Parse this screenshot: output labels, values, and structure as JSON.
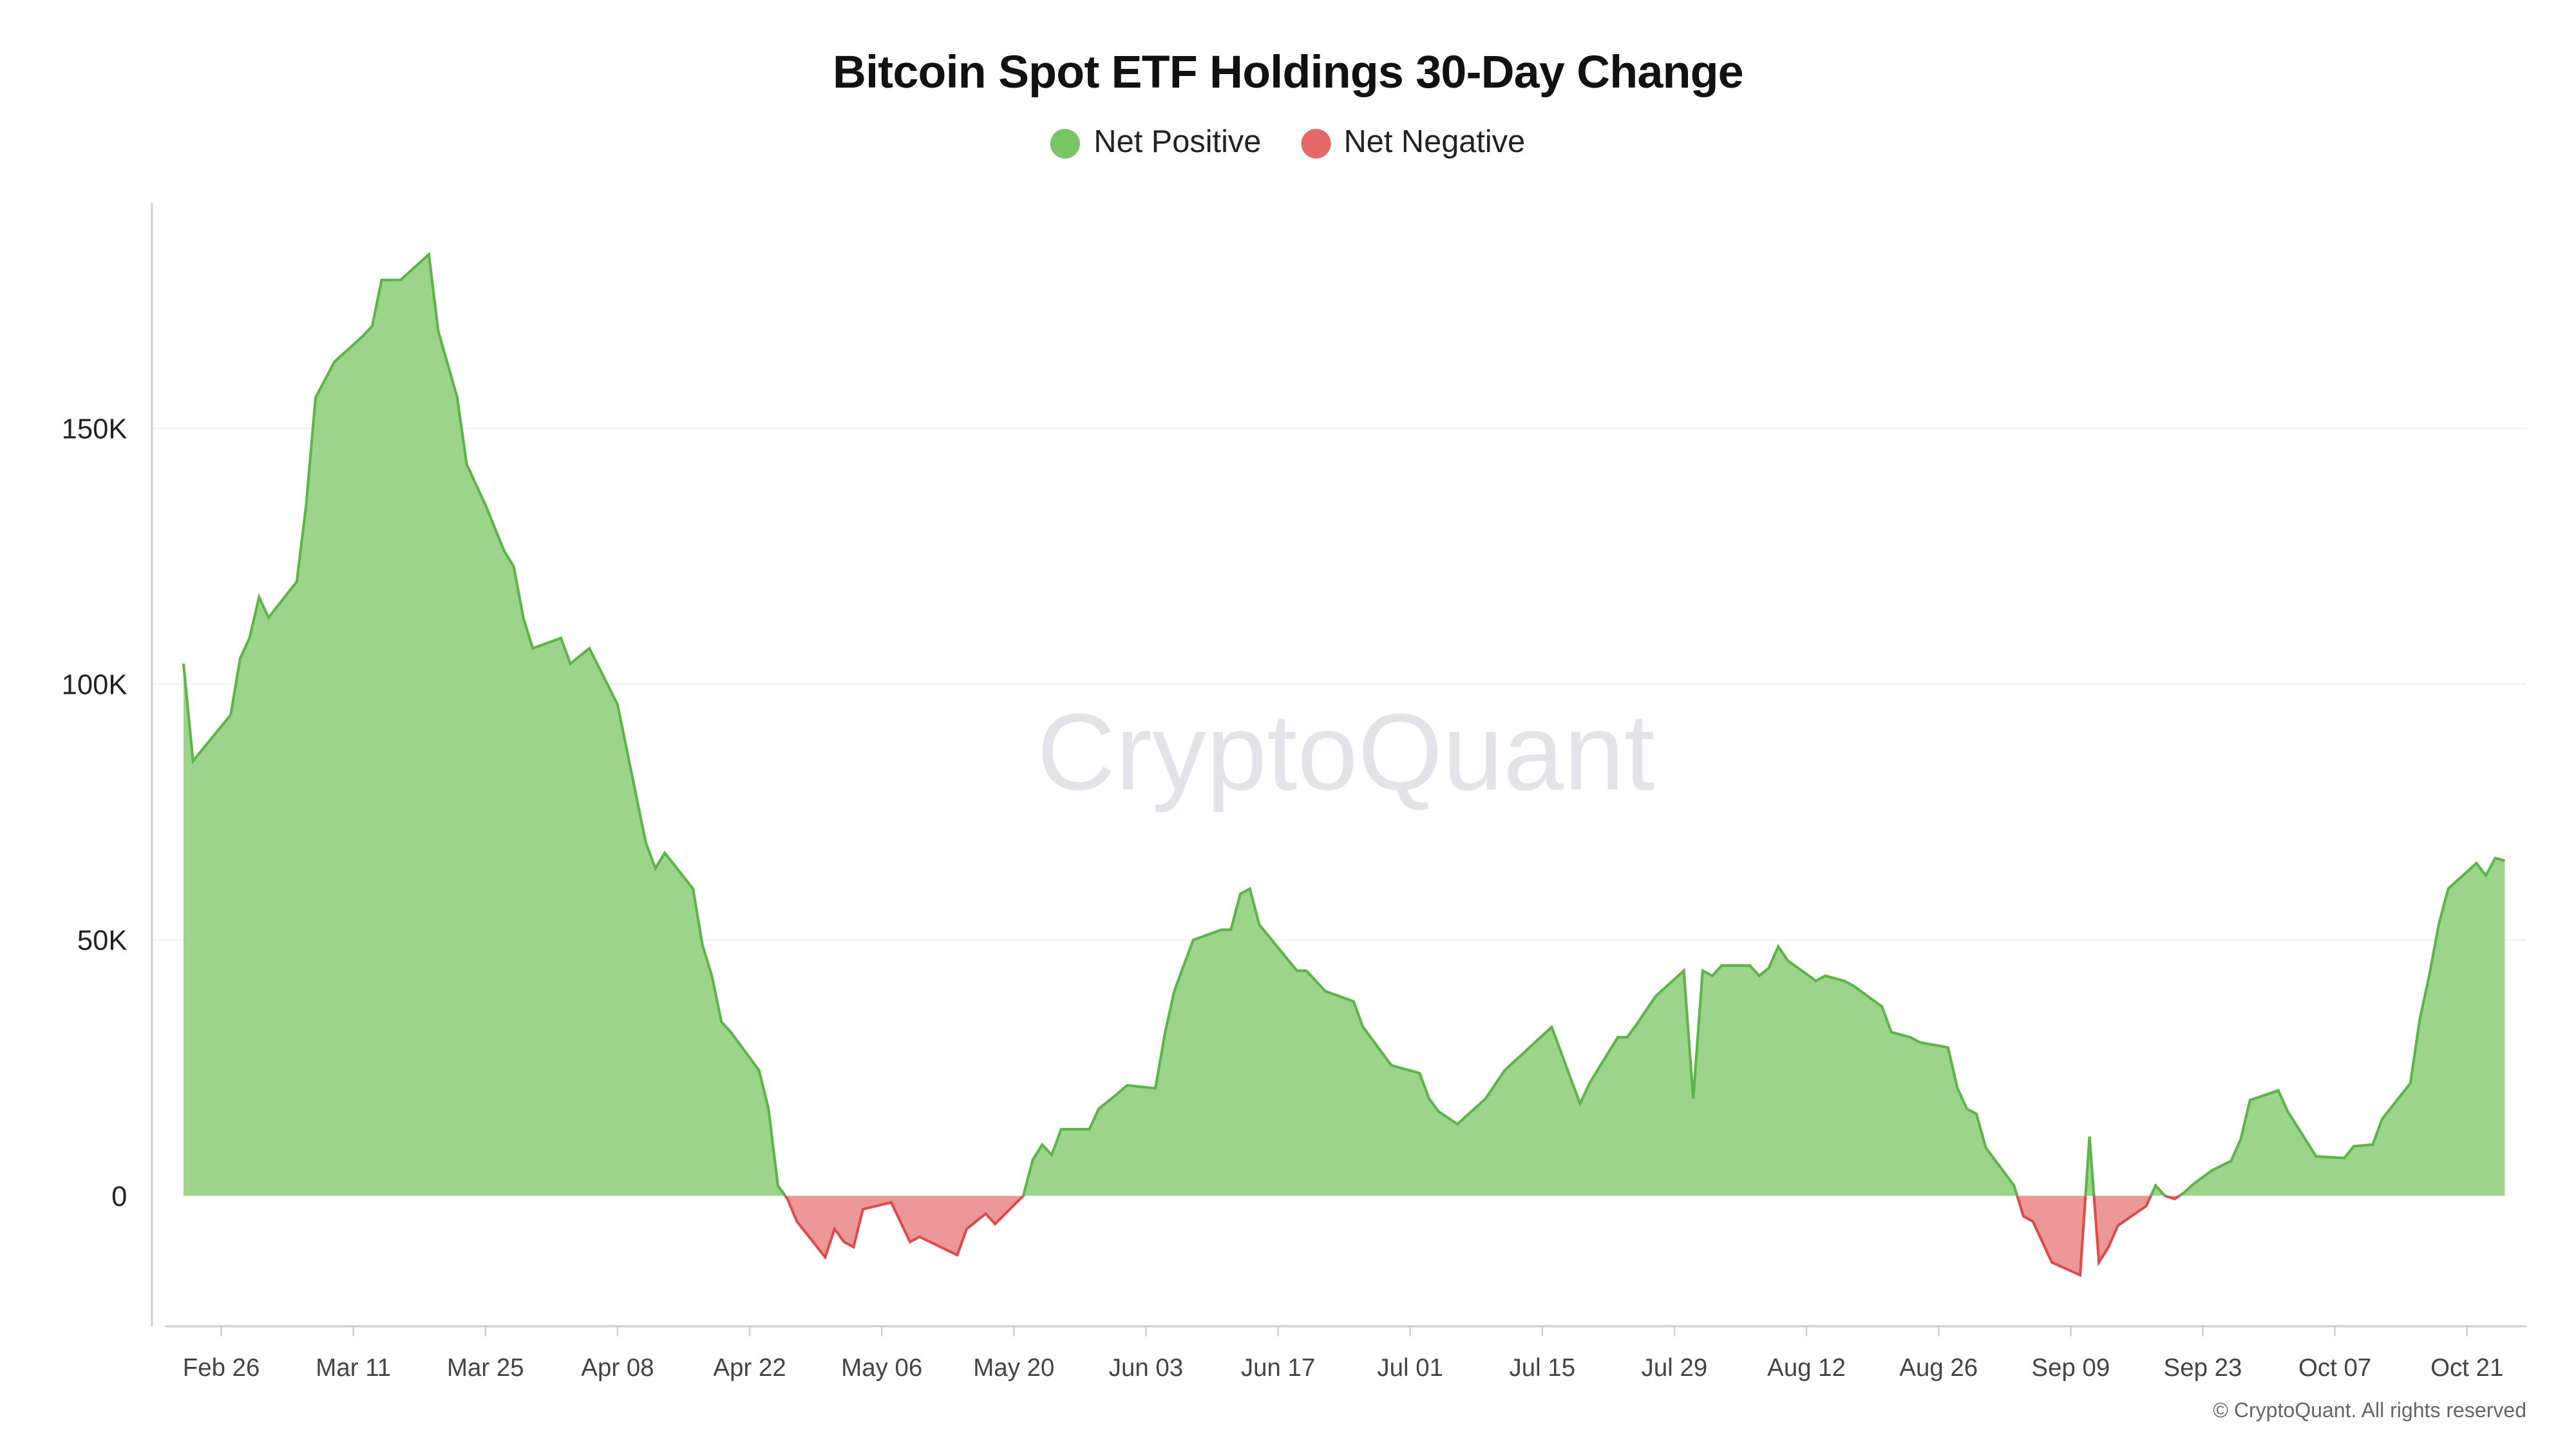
{
  "chart_data": {
    "type": "area",
    "title": "Bitcoin Spot ETF Holdings 30-Day Change",
    "legend": {
      "placement": "top-center",
      "items": [
        {
          "label": "Net Positive",
          "color": "#77c565"
        },
        {
          "label": "Net Negative",
          "color": "#e56868"
        }
      ]
    },
    "colors": {
      "positive_fill": "#9dd48c",
      "positive_line": "#5db54a",
      "negative_fill": "#ec9898",
      "negative_line": "#dc4c4c"
    },
    "watermark": "CryptoQuant",
    "footer": "© CryptoQuant. All rights reserved",
    "xlabel": "",
    "ylabel": "",
    "x_ticks": [
      "Feb 26",
      "Mar 11",
      "Mar 25",
      "Apr 08",
      "Apr 22",
      "May 06",
      "May 20",
      "Jun 03",
      "Jun 17",
      "Jul 01",
      "Jul 15",
      "Jul 29",
      "Aug 12",
      "Aug 26",
      "Sep 09",
      "Sep 23",
      "Oct 07",
      "Oct 21"
    ],
    "y_ticks": [
      {
        "value": 0,
        "label": "0"
      },
      {
        "value": 50000,
        "label": "50K"
      },
      {
        "value": 100000,
        "label": "100K"
      },
      {
        "value": 150000,
        "label": "150K"
      }
    ],
    "ylim": [
      -25500,
      194000
    ],
    "xlim": [
      "Feb 20",
      "Oct 27"
    ],
    "grid": true,
    "x": [
      "Feb 22",
      "Feb 23",
      "Feb 27",
      "Feb 28",
      "Feb 29",
      "Mar 01",
      "Mar 02",
      "Mar 05",
      "Mar 06",
      "Mar 07",
      "Mar 09",
      "Mar 12",
      "Mar 13",
      "Mar 14",
      "Mar 15",
      "Mar 16",
      "Mar 19",
      "Mar 20",
      "Mar 22",
      "Mar 23",
      "Mar 25",
      "Mar 27",
      "Mar 28",
      "Mar 29",
      "Mar 30",
      "Apr 02",
      "Apr 03",
      "Apr 05",
      "Apr 08",
      "Apr 11",
      "Apr 12",
      "Apr 13",
      "Apr 16",
      "Apr 17",
      "Apr 18",
      "Apr 19",
      "Apr 20",
      "Apr 23",
      "Apr 24",
      "Apr 25",
      "Apr 26",
      "Apr 27",
      "Apr 30",
      "May 01",
      "May 02",
      "May 03",
      "May 04",
      "May 07",
      "May 09",
      "May 10",
      "May 14",
      "May 15",
      "May 17",
      "May 18",
      "May 21",
      "May 22",
      "May 23",
      "May 24",
      "May 25",
      "May 28",
      "May 29",
      "May 31",
      "Jun 01",
      "Jun 04",
      "Jun 05",
      "Jun 06",
      "Jun 08",
      "Jun 11",
      "Jun 12",
      "Jun 13",
      "Jun 14",
      "Jun 15",
      "Jun 19",
      "Jun 20",
      "Jun 22",
      "Jun 25",
      "Jun 26",
      "Jun 28",
      "Jun 29",
      "Jul 02",
      "Jul 03",
      "Jul 04",
      "Jul 06",
      "Jul 09",
      "Jul 11",
      "Jul 16",
      "Jul 18",
      "Jul 19",
      "Jul 20",
      "Jul 23",
      "Jul 24",
      "Jul 25",
      "Jul 27",
      "Jul 30",
      "Jul 31",
      "Aug 01",
      "Aug 02",
      "Aug 03",
      "Aug 06",
      "Aug 07",
      "Aug 08",
      "Aug 09",
      "Aug 10",
      "Aug 13",
      "Aug 14",
      "Aug 16",
      "Aug 17",
      "Aug 20",
      "Aug 21",
      "Aug 23",
      "Aug 24",
      "Aug 27",
      "Aug 28",
      "Aug 29",
      "Aug 30",
      "Aug 31",
      "Sep 03",
      "Sep 04",
      "Sep 05",
      "Sep 07",
      "Sep 10",
      "Sep 11",
      "Sep 12",
      "Sep 13",
      "Sep 14",
      "Sep 17",
      "Sep 18",
      "Sep 19",
      "Sep 20",
      "Sep 21",
      "Sep 22",
      "Sep 24",
      "Sep 26",
      "Sep 27",
      "Sep 28",
      "Oct 01",
      "Oct 02",
      "Oct 05",
      "Oct 08",
      "Oct 09",
      "Oct 11",
      "Oct 12",
      "Oct 15",
      "Oct 16",
      "Oct 17",
      "Oct 18",
      "Oct 19",
      "Oct 22",
      "Oct 23",
      "Oct 24",
      "Oct 25"
    ],
    "values": [
      104000,
      85000,
      94000,
      105000,
      109000,
      117000,
      113000,
      120000,
      135000,
      156000,
      163000,
      168000,
      170000,
      179000,
      179000,
      179000,
      184000,
      169000,
      156000,
      143000,
      135000,
      126000,
      123000,
      113000,
      107000,
      109000,
      104000,
      107000,
      96000,
      69000,
      64000,
      67000,
      60000,
      49000,
      43000,
      34000,
      32000,
      24500,
      17000,
      2000,
      -600,
      -5000,
      -12000,
      -6500,
      -9000,
      -10000,
      -2600,
      -1300,
      -9000,
      -8000,
      -11600,
      -6500,
      -3500,
      -5500,
      0,
      7000,
      10000,
      8000,
      13000,
      13000,
      17000,
      20000,
      21600,
      21000,
      31600,
      40000,
      50000,
      52000,
      52000,
      59000,
      60000,
      53000,
      44000,
      44000,
      40000,
      38000,
      33000,
      28000,
      25500,
      24000,
      19000,
      16500,
      14000,
      19000,
      24500,
      33000,
      23000,
      18000,
      22000,
      31000,
      31000,
      33500,
      39000,
      44000,
      19000,
      44000,
      43000,
      45000,
      45000,
      43000,
      44500,
      48700,
      46000,
      42000,
      43000,
      42000,
      41000,
      37000,
      32000,
      31000,
      30000,
      29000,
      21000,
      17000,
      16000,
      9400,
      2000,
      -4000,
      -5000,
      -13000,
      -15500,
      11600,
      -13000,
      -10000,
      -5800,
      -2000,
      2000,
      0,
      -600,
      600,
      2300,
      5000,
      6800,
      11000,
      18700,
      20600,
      16500,
      7700,
      7400,
      9700,
      10000,
      15000,
      22000,
      34500,
      43000,
      53000,
      60000,
      65000,
      62600,
      66000,
      65500
    ]
  }
}
